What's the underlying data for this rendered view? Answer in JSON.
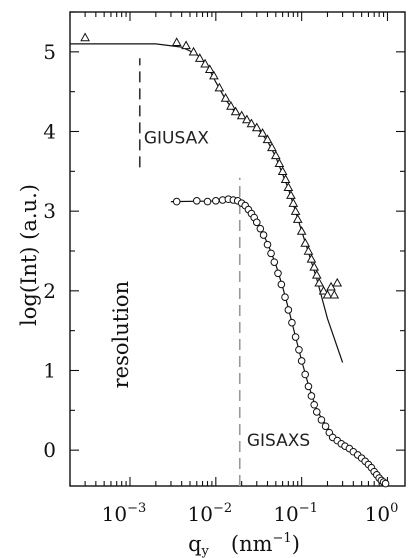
{
  "chart_data": {
    "type": "scatter",
    "title": "",
    "xlabel": "q",
    "xlabel_sub": "y",
    "xlabel_units": "(nm",
    "xlabel_units_sup": "−1",
    "xlabel_units_close": ")",
    "ylabel": "log(Int)    (a.u.)",
    "xscale": "log",
    "xlim": [
      0.0002,
      1.6
    ],
    "ylim": [
      -0.45,
      5.5
    ],
    "x_ticks": [
      0.001,
      0.01,
      0.1,
      1
    ],
    "x_tick_labels": [
      {
        "base": "10",
        "exp": "−3"
      },
      {
        "base": "10",
        "exp": "−2"
      },
      {
        "base": "10",
        "exp": "−1"
      },
      {
        "base": "10",
        "exp": "0"
      }
    ],
    "y_ticks": [
      0,
      1,
      2,
      3,
      4,
      5
    ],
    "y_tick_labels": [
      "0",
      "1",
      "2",
      "3",
      "4",
      "5"
    ],
    "grid": false,
    "legend": "none",
    "series": [
      {
        "marker": "triangle-open",
        "points": [
          [
            0.0003,
            5.18
          ],
          [
            0.0035,
            5.12
          ],
          [
            0.0045,
            5.08
          ],
          [
            0.0055,
            5.0
          ],
          [
            0.0065,
            4.92
          ],
          [
            0.0075,
            4.85
          ],
          [
            0.0085,
            4.78
          ],
          [
            0.0095,
            4.7
          ],
          [
            0.011,
            4.55
          ],
          [
            0.013,
            4.42
          ],
          [
            0.015,
            4.32
          ],
          [
            0.017,
            4.25
          ],
          [
            0.02,
            4.2
          ],
          [
            0.023,
            4.15
          ],
          [
            0.026,
            4.1
          ],
          [
            0.03,
            4.05
          ],
          [
            0.035,
            3.98
          ],
          [
            0.04,
            3.9
          ],
          [
            0.045,
            3.8
          ],
          [
            0.05,
            3.7
          ],
          [
            0.055,
            3.6
          ],
          [
            0.06,
            3.5
          ],
          [
            0.065,
            3.4
          ],
          [
            0.07,
            3.3
          ],
          [
            0.075,
            3.2
          ],
          [
            0.08,
            3.1
          ],
          [
            0.085,
            3.0
          ],
          [
            0.09,
            2.9
          ],
          [
            0.1,
            2.75
          ],
          [
            0.11,
            2.6
          ],
          [
            0.12,
            2.5
          ],
          [
            0.13,
            2.4
          ],
          [
            0.14,
            2.3
          ],
          [
            0.15,
            2.2
          ],
          [
            0.16,
            2.1
          ],
          [
            0.18,
            2.0
          ],
          [
            0.2,
            1.95
          ],
          [
            0.22,
            2.05
          ],
          [
            0.24,
            1.95
          ],
          [
            0.26,
            2.1
          ]
        ]
      },
      {
        "marker": "circle-open",
        "points": [
          [
            0.0035,
            3.12
          ],
          [
            0.006,
            3.13
          ],
          [
            0.008,
            3.12
          ],
          [
            0.01,
            3.13
          ],
          [
            0.012,
            3.14
          ],
          [
            0.014,
            3.15
          ],
          [
            0.016,
            3.14
          ],
          [
            0.018,
            3.13
          ],
          [
            0.02,
            3.1
          ],
          [
            0.022,
            3.07
          ],
          [
            0.024,
            3.02
          ],
          [
            0.026,
            2.97
          ],
          [
            0.028,
            2.92
          ],
          [
            0.03,
            2.86
          ],
          [
            0.033,
            2.78
          ],
          [
            0.036,
            2.7
          ],
          [
            0.04,
            2.58
          ],
          [
            0.044,
            2.47
          ],
          [
            0.048,
            2.36
          ],
          [
            0.053,
            2.22
          ],
          [
            0.058,
            2.08
          ],
          [
            0.064,
            1.92
          ],
          [
            0.07,
            1.76
          ],
          [
            0.077,
            1.6
          ],
          [
            0.085,
            1.42
          ],
          [
            0.093,
            1.26
          ],
          [
            0.1,
            1.12
          ],
          [
            0.11,
            0.95
          ],
          [
            0.12,
            0.8
          ],
          [
            0.13,
            0.68
          ],
          [
            0.14,
            0.57
          ],
          [
            0.15,
            0.48
          ],
          [
            0.17,
            0.38
          ],
          [
            0.19,
            0.3
          ],
          [
            0.21,
            0.22
          ],
          [
            0.23,
            0.16
          ],
          [
            0.26,
            0.12
          ],
          [
            0.29,
            0.08
          ],
          [
            0.32,
            0.05
          ],
          [
            0.36,
            0.02
          ],
          [
            0.4,
            -0.02
          ],
          [
            0.45,
            -0.06
          ],
          [
            0.5,
            -0.1
          ],
          [
            0.55,
            -0.14
          ],
          [
            0.6,
            -0.18
          ],
          [
            0.65,
            -0.22
          ],
          [
            0.7,
            -0.27
          ],
          [
            0.75,
            -0.31
          ],
          [
            0.8,
            -0.35
          ],
          [
            0.85,
            -0.38
          ],
          [
            0.9,
            -0.4
          ],
          [
            0.95,
            -0.42
          ]
        ]
      }
    ],
    "fit_lines": [
      {
        "points": [
          [
            0.0002,
            5.1
          ],
          [
            0.002,
            5.1
          ],
          [
            0.004,
            5.06
          ],
          [
            0.006,
            4.97
          ],
          [
            0.008,
            4.82
          ],
          [
            0.01,
            4.62
          ],
          [
            0.013,
            4.4
          ],
          [
            0.016,
            4.27
          ],
          [
            0.02,
            4.2
          ],
          [
            0.025,
            4.13
          ],
          [
            0.03,
            4.05
          ],
          [
            0.04,
            3.88
          ],
          [
            0.05,
            3.68
          ],
          [
            0.07,
            3.28
          ],
          [
            0.1,
            2.75
          ],
          [
            0.15,
            2.15
          ],
          [
            0.2,
            1.65
          ],
          [
            0.3,
            1.1
          ]
        ]
      },
      {
        "points": [
          [
            0.003,
            3.12
          ],
          [
            0.015,
            3.13
          ],
          [
            0.02,
            3.08
          ],
          [
            0.025,
            2.98
          ],
          [
            0.03,
            2.86
          ],
          [
            0.04,
            2.6
          ],
          [
            0.05,
            2.33
          ],
          [
            0.06,
            2.05
          ],
          [
            0.07,
            1.78
          ],
          [
            0.085,
            1.42
          ],
          [
            0.1,
            1.12
          ],
          [
            0.12,
            0.82
          ],
          [
            0.15,
            0.5
          ],
          [
            0.2,
            0.28
          ],
          [
            0.3,
            0.06
          ],
          [
            0.5,
            -0.1
          ],
          [
            0.8,
            -0.3
          ],
          [
            1.0,
            -0.42
          ]
        ]
      }
    ],
    "reference_lines": [
      {
        "x": 0.0013,
        "y_from": 3.55,
        "y_to": 4.92
      },
      {
        "x": 0.019,
        "y_from": -0.45,
        "y_to": 3.42
      }
    ],
    "annotations": [
      {
        "text": "GIUSAX",
        "x": 0.00145,
        "y": 3.85,
        "style": "sans"
      },
      {
        "text": "GISAXS",
        "x": 0.023,
        "y": 0.05,
        "style": "sans"
      },
      {
        "text": "resolution",
        "x": 0.00095,
        "y": 1.45,
        "style": "serif-vertical"
      }
    ]
  }
}
